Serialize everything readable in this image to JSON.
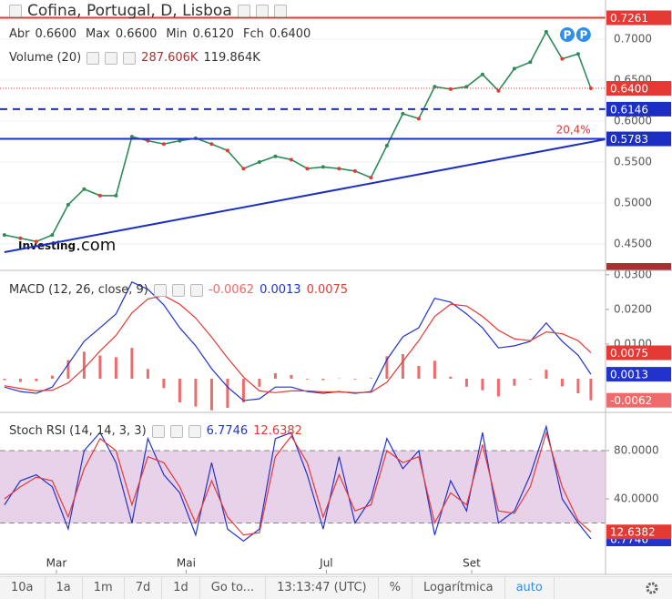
{
  "chart_data": [
    {
      "type": "line",
      "title": "Cofina, Portugal, D, Lisboa",
      "ohlc": [
        {
          "label": "Abr",
          "value": "0.6600"
        },
        {
          "label": "Max",
          "value": "0.6600"
        },
        {
          "label": "Min",
          "value": "0.6120"
        },
        {
          "label": "Fch",
          "value": "0.6400"
        }
      ],
      "volume": {
        "title": "Volume (20)",
        "readouts": [
          "287.606K",
          "119.864K"
        ],
        "color": "#a83232"
      },
      "watermark": [
        "Investing",
        ".com"
      ],
      "x": [
        0,
        5,
        10,
        15,
        20,
        25,
        30,
        35,
        40,
        45,
        50,
        55,
        60,
        65,
        70,
        75,
        80,
        85,
        90,
        95,
        100,
        105,
        110,
        115,
        120,
        125,
        130,
        135,
        140,
        145,
        150,
        155,
        160,
        165,
        170,
        175,
        180,
        184
      ],
      "xlim": [
        -1.4,
        188.6
      ],
      "values": [
        0.461,
        0.457,
        0.453,
        0.461,
        0.498,
        0.517,
        0.509,
        0.509,
        0.581,
        0.576,
        0.572,
        0.576,
        0.579,
        0.572,
        0.564,
        0.542,
        0.55,
        0.557,
        0.553,
        0.542,
        0.544,
        0.542,
        0.539,
        0.531,
        0.57,
        0.609,
        0.603,
        0.642,
        0.639,
        0.642,
        0.657,
        0.637,
        0.664,
        0.672,
        0.709,
        0.676,
        0.682,
        0.64
      ],
      "color": "#2e8b57",
      "ylim": [
        0.4178,
        0.7478
      ],
      "yticks": [
        {
          "value": 0.45,
          "label": "0.4500"
        },
        {
          "value": 0.5,
          "label": "0.5000"
        },
        {
          "value": 0.55,
          "label": "0.5500"
        },
        {
          "value": 0.6,
          "label": "0.6000"
        },
        {
          "value": 0.65,
          "label": "0.6500"
        },
        {
          "value": 0.7,
          "label": "0.7000"
        }
      ],
      "levels": [
        {
          "value": 0.7261,
          "label": "0.7261",
          "color": "#e53935",
          "style": "solid"
        },
        {
          "value": 0.64,
          "label": "0.6400",
          "color": "#e53935",
          "style": "dotted"
        },
        {
          "value": 0.6146,
          "label": "0.6146",
          "color": "#1c2fc4",
          "style": "dashed"
        },
        {
          "value": 0.5783,
          "label": "0.5783",
          "color": "#1c2fc4",
          "style": "solid"
        }
      ],
      "trendline": {
        "x": [
          0,
          188.6
        ],
        "y": [
          0.44,
          0.5778
        ],
        "color": "#1c2fc4"
      },
      "annotation": {
        "text": "20,4%",
        "x": 178.5,
        "y": 0.589,
        "color": "#e53935"
      },
      "events": [
        {
          "x": 176.6,
          "label": "P"
        },
        {
          "x": 181.7,
          "label": "P"
        }
      ]
    },
    {
      "type": "macd",
      "title": "MACD (12, 26, close, 9)",
      "ylim": [
        -0.0097,
        0.031
      ],
      "yticks": [
        {
          "value": 0.01,
          "label": "0.0100"
        },
        {
          "value": 0.02,
          "label": "0.0200"
        },
        {
          "value": 0.03,
          "label": "0.0300"
        }
      ],
      "series": [
        {
          "kind": "histogram",
          "color": "#ef6a6a",
          "badge": "-0.0062",
          "values": [
            -0.0004,
            -0.0009,
            -0.0007,
            0.0009,
            0.0054,
            0.0078,
            0.0067,
            0.0062,
            0.0089,
            0.0028,
            -0.0027,
            -0.0068,
            -0.008,
            -0.0091,
            -0.0084,
            -0.0068,
            -0.0023,
            0.0016,
            0.0011,
            -0.0002,
            -0.0004,
            0.0001,
            -0.0002,
            0.0002,
            0.0065,
            0.0071,
            0.0037,
            0.0052,
            0.0006,
            -0.0023,
            -0.0033,
            -0.0051,
            -0.002,
            -0.0002,
            0.0026,
            -0.0022,
            -0.0042,
            -0.0062
          ]
        },
        {
          "kind": "line",
          "color": "#2233cc",
          "badge": "0.0013",
          "values": [
            -0.0024,
            -0.0037,
            -0.0042,
            -0.0024,
            0.0042,
            0.0108,
            0.0147,
            0.0187,
            0.0279,
            0.0258,
            0.0213,
            0.0147,
            0.0095,
            0.0029,
            -0.0024,
            -0.0063,
            -0.0058,
            -0.0024,
            -0.0024,
            -0.0037,
            -0.0042,
            -0.0037,
            -0.0042,
            -0.0037,
            0.0055,
            0.0121,
            0.0147,
            0.0232,
            0.0221,
            0.0187,
            0.0147,
            0.0089,
            0.0095,
            0.0108,
            0.0161,
            0.0108,
            0.0068,
            0.0013
          ]
        },
        {
          "kind": "line",
          "color": "#e53935",
          "badge": "0.0075",
          "values": [
            -0.002,
            -0.0028,
            -0.0035,
            -0.0033,
            -0.0012,
            0.003,
            0.008,
            0.0125,
            0.019,
            0.023,
            0.024,
            0.0215,
            0.0175,
            0.012,
            0.006,
            0.0005,
            -0.0035,
            -0.004,
            -0.0035,
            -0.0035,
            -0.0038,
            -0.0038,
            -0.004,
            -0.0039,
            -0.001,
            0.005,
            0.011,
            0.018,
            0.0215,
            0.021,
            0.018,
            0.014,
            0.0115,
            0.011,
            0.0135,
            0.013,
            0.011,
            0.0075
          ]
        }
      ]
    },
    {
      "type": "stoch",
      "title": "Stoch RSI (14, 14, 3, 3)",
      "ylim": [
        -21.9,
        110.2
      ],
      "yticks": [
        {
          "value": 40,
          "label": "40.0000"
        },
        {
          "value": 80,
          "label": "80.0000"
        }
      ],
      "band": [
        20,
        80
      ],
      "band_color": "#e8d2ea",
      "xticks": [
        {
          "value": 16.3,
          "label": "Mar"
        },
        {
          "value": 57,
          "label": "Mai"
        },
        {
          "value": 101,
          "label": "Jul"
        },
        {
          "value": 146.6,
          "label": "Set"
        }
      ],
      "series": [
        {
          "kind": "line",
          "color": "#2233cc",
          "badge": "6.7746",
          "values": [
            35,
            55,
            60,
            50,
            15,
            80,
            95,
            70,
            20,
            90,
            60,
            45,
            10,
            70,
            15,
            5,
            15,
            90,
            95,
            60,
            15,
            75,
            20,
            40,
            90,
            65,
            80,
            10,
            55,
            30,
            95,
            20,
            30,
            60,
            100,
            40,
            20,
            6.7746
          ]
        },
        {
          "kind": "line",
          "color": "#e53935",
          "badge": "12.6382",
          "values": [
            40,
            50,
            58,
            55,
            25,
            65,
            90,
            80,
            35,
            75,
            70,
            50,
            20,
            55,
            25,
            10,
            12,
            75,
            92,
            70,
            25,
            60,
            30,
            35,
            80,
            70,
            75,
            20,
            45,
            35,
            85,
            30,
            28,
            50,
            95,
            50,
            22,
            12.6382
          ]
        }
      ]
    }
  ],
  "toolbar": [
    "10a",
    "1a",
    "1m",
    "7d",
    "1d",
    "Go to...",
    "13:13:47 (UTC)",
    "%",
    "Logarítmica",
    "auto"
  ]
}
